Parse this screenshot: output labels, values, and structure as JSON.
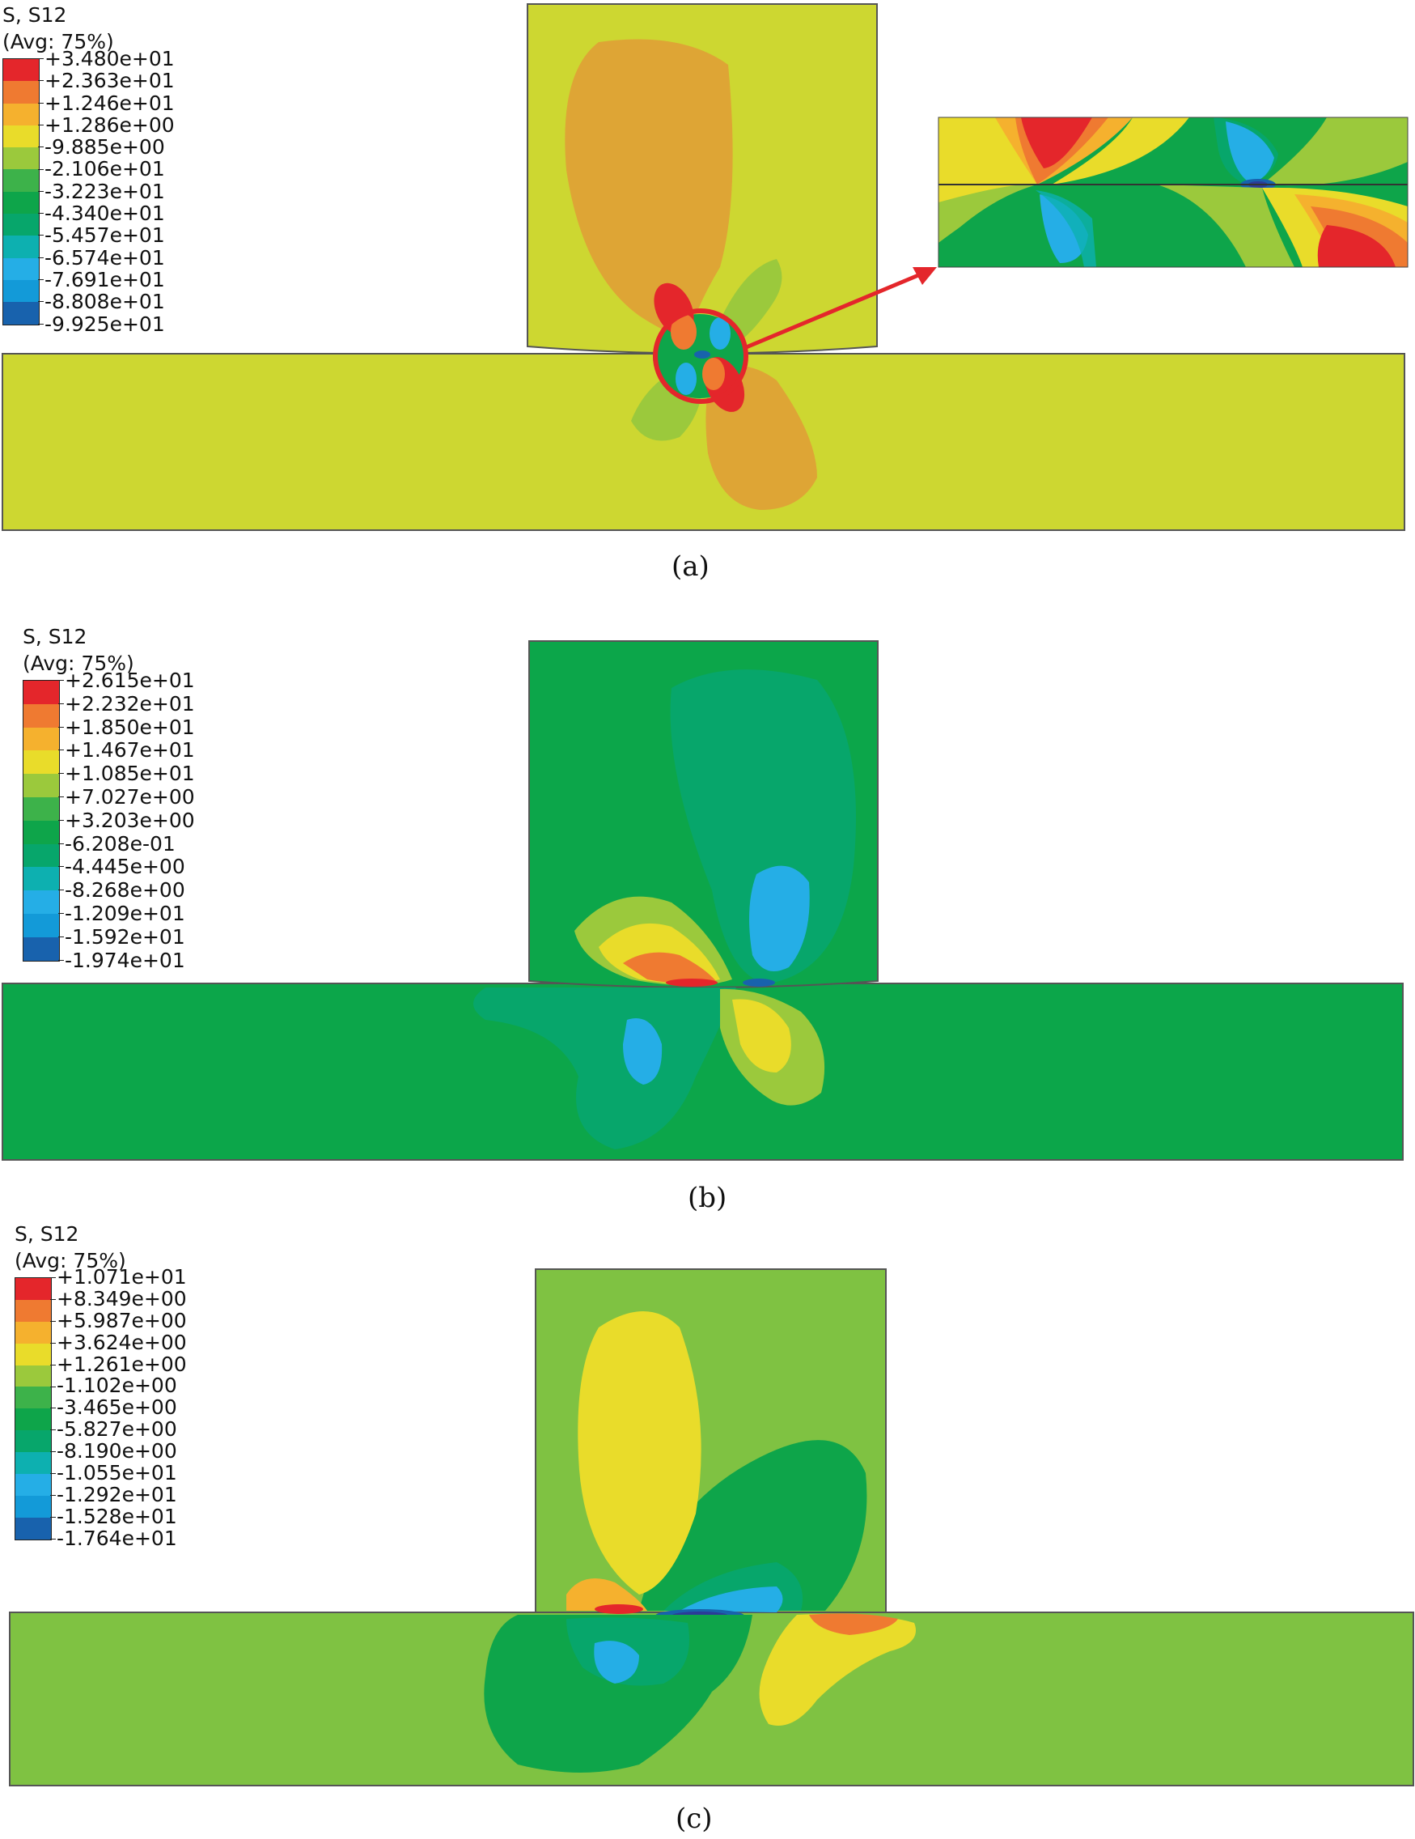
{
  "panels": [
    {
      "id": "a",
      "caption": "(a)",
      "legend": {
        "title_line1": "S, S12",
        "title_line2": "(Avg: 75%)",
        "values": [
          "+3.480e+01",
          "+2.363e+01",
          "+1.246e+01",
          "+1.286e+00",
          "-9.885e+00",
          "-2.106e+01",
          "-3.223e+01",
          "-4.340e+01",
          "-5.457e+01",
          "-6.574e+01",
          "-7.691e+01",
          "-8.808e+01",
          "-9.925e+01"
        ],
        "colors": [
          "#e4262b",
          "#ef7a31",
          "#f5b12e",
          "#e9dc2a",
          "#9bc93c",
          "#3db24a",
          "#0ea54a",
          "#07a66b",
          "#0db0b0",
          "#25aee6",
          "#139ad8",
          "#1862ad",
          "#2b3b98"
        ]
      },
      "background_color": "#cdd731"
    },
    {
      "id": "b",
      "caption": "(b)",
      "legend": {
        "title_line1": "S, S12",
        "title_line2": "(Avg: 75%)",
        "values": [
          "+2.615e+01",
          "+2.232e+01",
          "+1.850e+01",
          "+1.467e+01",
          "+1.085e+01",
          "+7.027e+00",
          "+3.203e+00",
          "-6.208e-01",
          "-4.445e+00",
          "-8.268e+00",
          "-1.209e+01",
          "-1.592e+01",
          "-1.974e+01"
        ],
        "colors": [
          "#e4262b",
          "#ef7a31",
          "#f5b12e",
          "#e9dc2a",
          "#9bc93c",
          "#3db24a",
          "#0ea54a",
          "#07a66b",
          "#0db0b0",
          "#25aee6",
          "#139ad8",
          "#1862ad",
          "#2b3b98"
        ]
      },
      "background_color": "#0ca64a"
    },
    {
      "id": "c",
      "caption": "(c)",
      "legend": {
        "title_line1": "S, S12",
        "title_line2": "(Avg: 75%)",
        "values": [
          "+1.071e+01",
          "+8.349e+00",
          "+5.987e+00",
          "+3.624e+00",
          "+1.261e+00",
          "-1.102e+00",
          "-3.465e+00",
          "-5.827e+00",
          "-8.190e+00",
          "-1.055e+01",
          "-1.292e+01",
          "-1.528e+01",
          "-1.764e+01"
        ],
        "colors": [
          "#e4262b",
          "#ef7a31",
          "#f5b12e",
          "#e9dc2a",
          "#9bc93c",
          "#3db24a",
          "#0ea54a",
          "#07a66b",
          "#0db0b0",
          "#25aee6",
          "#139ad8",
          "#1862ad",
          "#2b3b98"
        ]
      },
      "background_color": "#7fc242"
    }
  ]
}
